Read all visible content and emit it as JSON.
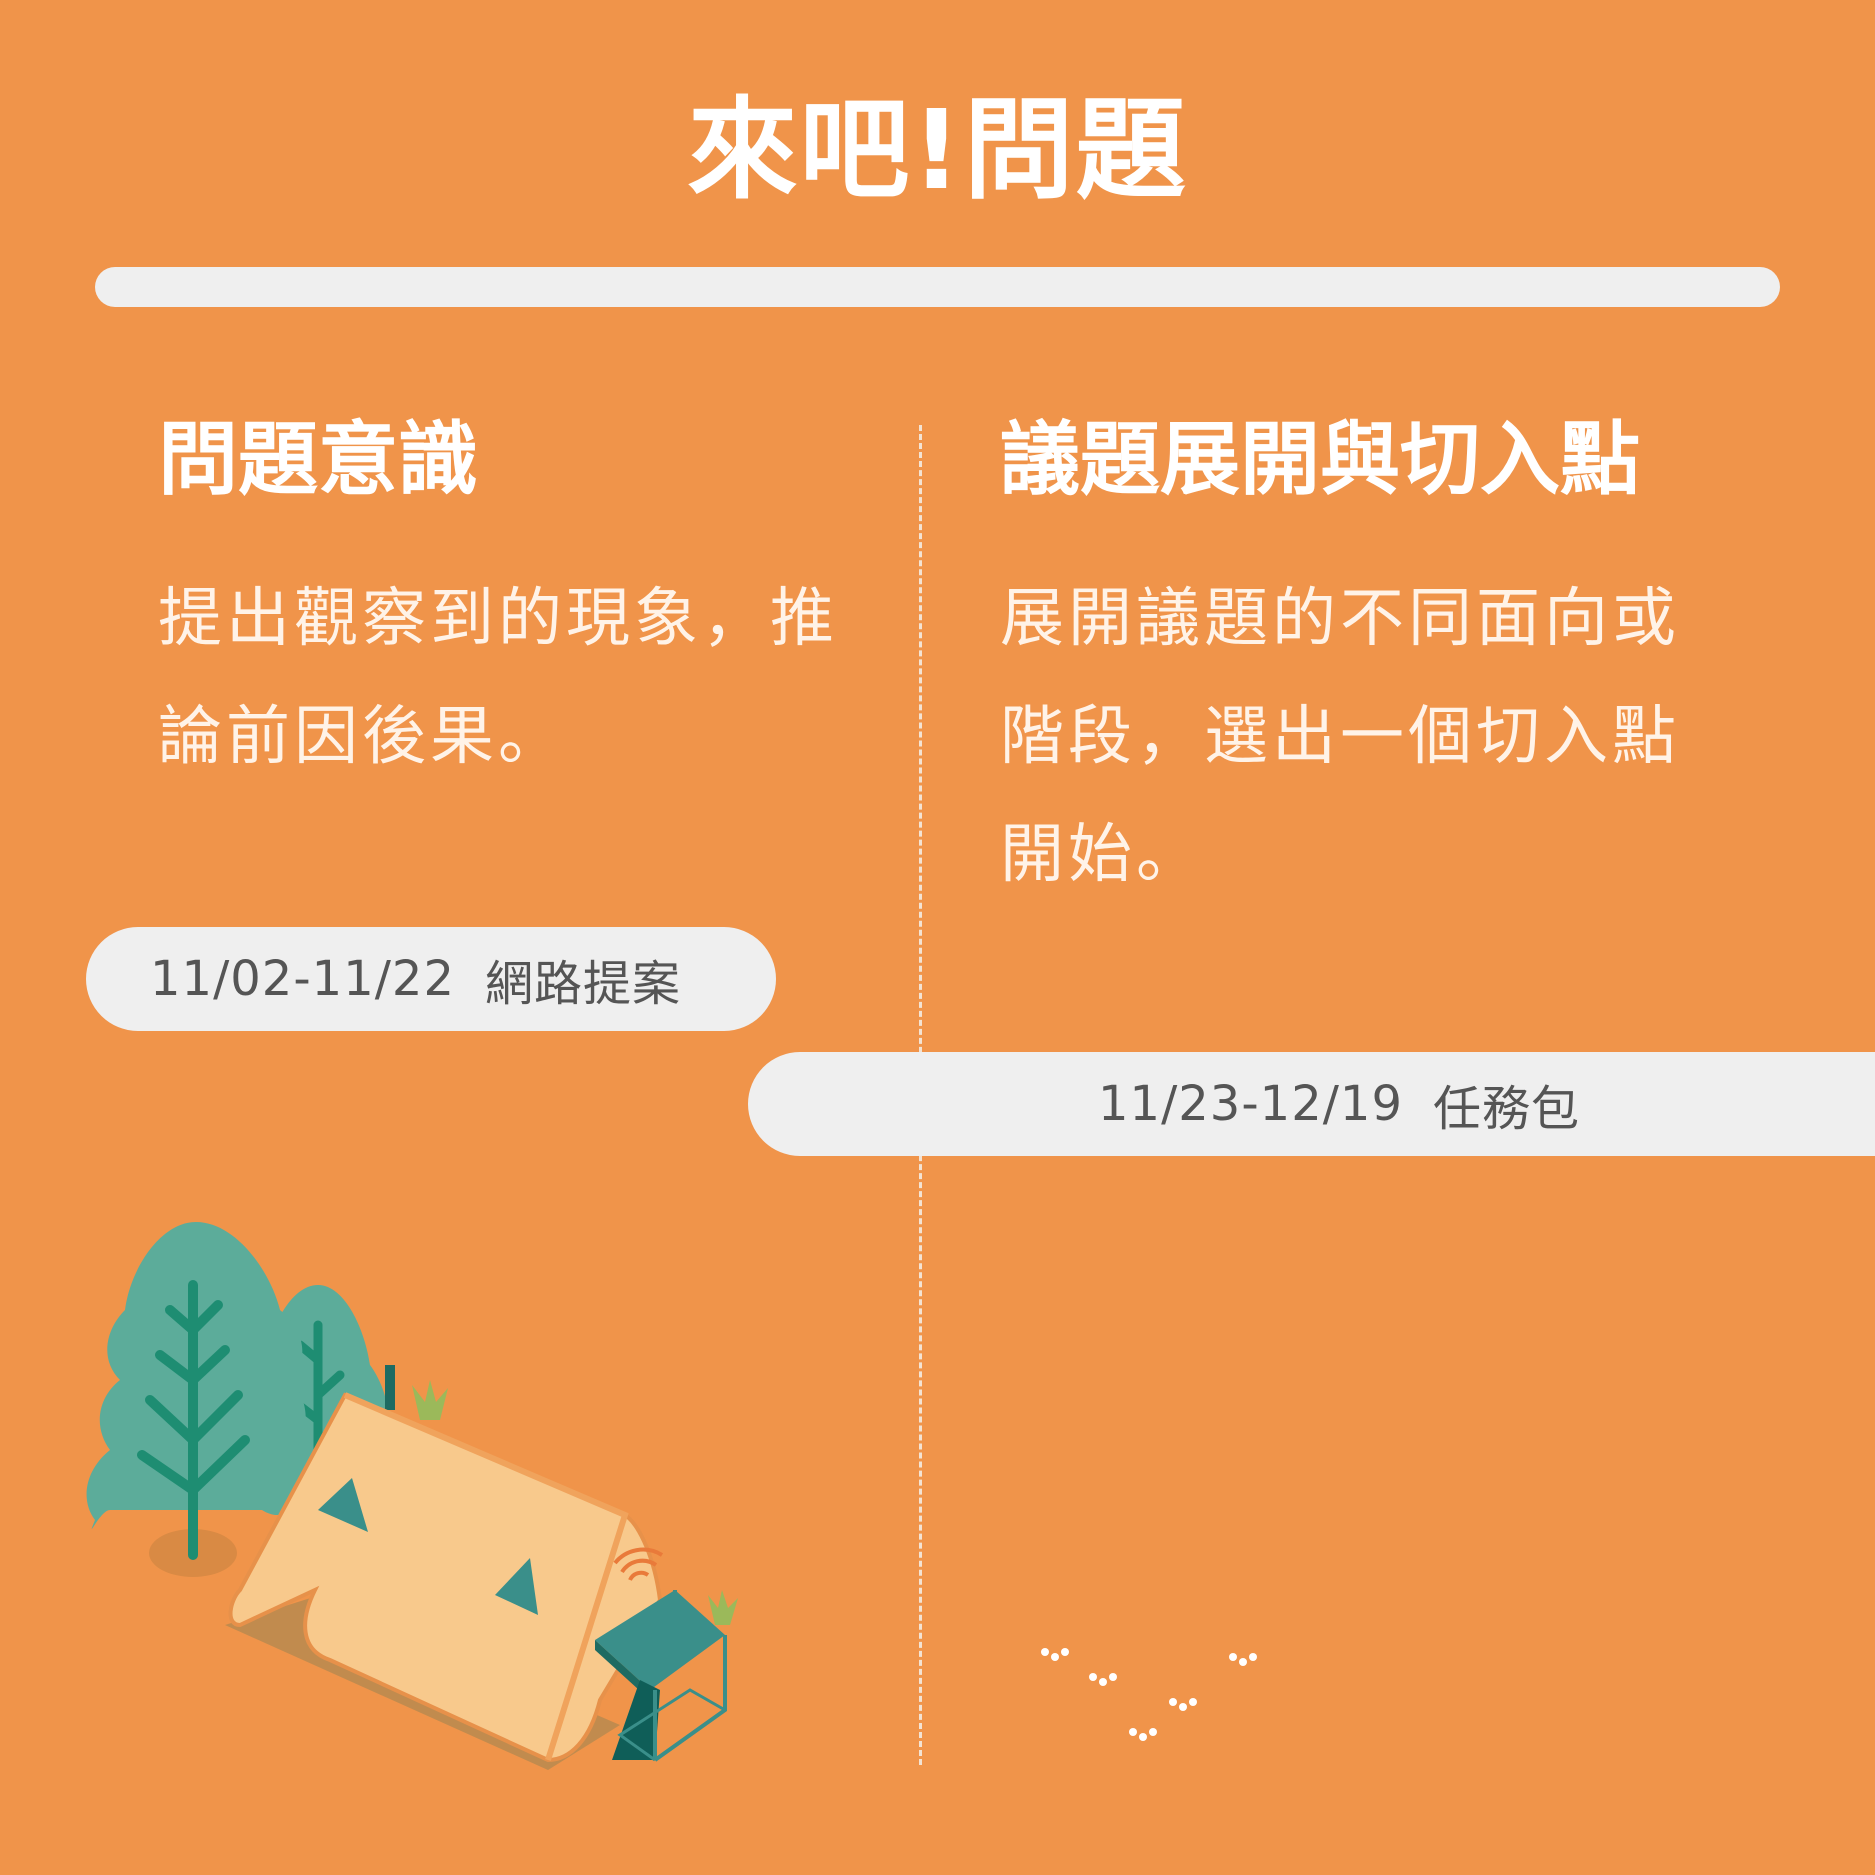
{
  "title": "來吧!問題",
  "left": {
    "heading": "問題意識",
    "body_line1": "提出觀察到的現象，推",
    "body_line2": "論前因後果。",
    "date_range": "11/02-11/22",
    "channel": "網路提案"
  },
  "right": {
    "heading": "議題展開與切入點",
    "body_line1": "展開議題的不同面向或",
    "body_line2": "階段，選出一個切入點",
    "body_line3": "開始。",
    "date_range": "11/23-12/19",
    "channel": "任務包"
  },
  "colors": {
    "background": "#F0944A",
    "pill": "#EFEFEF",
    "tree": "#5CAC9A",
    "tent": "#F8C98C"
  },
  "icons": [
    "tree-icon",
    "tent-icon",
    "grass-icon"
  ]
}
